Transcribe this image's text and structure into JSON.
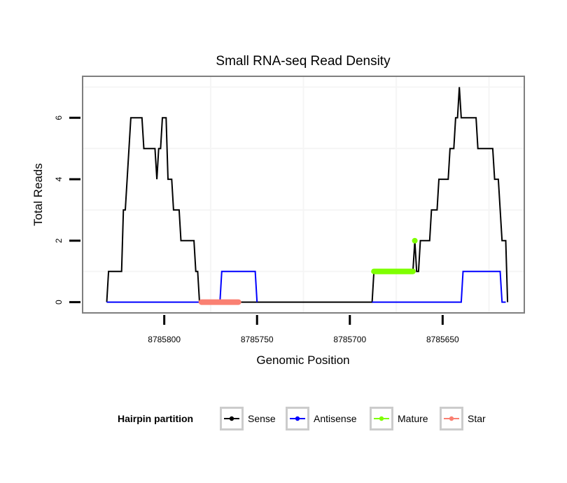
{
  "chart_data": {
    "type": "line",
    "title": "Small RNA-seq Read Density",
    "xlabel": "Genomic Position",
    "ylabel": "Total Reads",
    "x_reversed": true,
    "xlim": [
      8785844,
      8785606
    ],
    "ylim": [
      -0.35,
      7.35
    ],
    "x_ticks": [
      8785800,
      8785750,
      8785700,
      8785650
    ],
    "x_tick_labels": [
      "8785800",
      "8785750",
      "8785700",
      "8785650"
    ],
    "y_ticks": [
      0,
      2,
      4,
      6
    ],
    "y_tick_labels": [
      "0",
      "2",
      "4",
      "6"
    ],
    "x_minor_grid": [
      8785775,
      8785725,
      8785675,
      8785625
    ],
    "y_minor_grid": [
      1,
      3,
      5,
      7
    ],
    "grid": true,
    "legend": {
      "title": "Hairpin partition",
      "placement": "bottom",
      "entries": [
        "Sense",
        "Antisense",
        "Mature",
        "Star"
      ]
    },
    "series": [
      {
        "name": "Sense",
        "color": "#000000",
        "points": [
          [
            8785831,
            0
          ],
          [
            8785830,
            1
          ],
          [
            8785823,
            1
          ],
          [
            8785822,
            3
          ],
          [
            8785821,
            3
          ],
          [
            8785818,
            6
          ],
          [
            8785812,
            6
          ],
          [
            8785811,
            5
          ],
          [
            8785805,
            5
          ],
          [
            8785804,
            4
          ],
          [
            8785803,
            5
          ],
          [
            8785802,
            5
          ],
          [
            8785801,
            6
          ],
          [
            8785799,
            6
          ],
          [
            8785798,
            4
          ],
          [
            8785796,
            4
          ],
          [
            8785795,
            3
          ],
          [
            8785792,
            3
          ],
          [
            8785791,
            2
          ],
          [
            8785784,
            2
          ],
          [
            8785783,
            1
          ],
          [
            8785782,
            1
          ],
          [
            8785781,
            0
          ],
          [
            8785688,
            0
          ],
          [
            8785687,
            1
          ],
          [
            8785666,
            1
          ],
          [
            8785665,
            2
          ],
          [
            8785664,
            1
          ],
          [
            8785663,
            1
          ],
          [
            8785662,
            2
          ],
          [
            8785657,
            2
          ],
          [
            8785656,
            3
          ],
          [
            8785653,
            3
          ],
          [
            8785652,
            4
          ],
          [
            8785647,
            4
          ],
          [
            8785646,
            5
          ],
          [
            8785644,
            5
          ],
          [
            8785643,
            6
          ],
          [
            8785642,
            6
          ],
          [
            8785641,
            7
          ],
          [
            8785640,
            6
          ],
          [
            8785632,
            6
          ],
          [
            8785631,
            5
          ],
          [
            8785623,
            5
          ],
          [
            8785622,
            4
          ],
          [
            8785620,
            4
          ],
          [
            8785618,
            2
          ],
          [
            8785616,
            2
          ],
          [
            8785615,
            0
          ]
        ]
      },
      {
        "name": "Antisense",
        "color": "#0000ff",
        "points": [
          [
            8785831,
            0
          ],
          [
            8785781,
            0
          ]
        ],
        "segments": [
          [
            [
              8785831,
              0
            ],
            [
              8785781,
              0
            ]
          ],
          [
            [
              8785770,
              0
            ],
            [
              8785769,
              1
            ],
            [
              8785751,
              1
            ],
            [
              8785750,
              0
            ]
          ],
          [
            [
              8785688,
              0
            ],
            [
              8785640,
              0
            ],
            [
              8785639,
              1
            ],
            [
              8785619,
              1
            ],
            [
              8785618,
              0
            ],
            [
              8785616,
              0
            ]
          ]
        ]
      },
      {
        "name": "Mature",
        "color": "#7fff00",
        "segments": [
          [
            [
              8785687,
              1
            ],
            [
              8785666,
              1
            ]
          ]
        ],
        "points": [
          [
            8785665,
            2
          ]
        ]
      },
      {
        "name": "Star",
        "color": "#fa8072",
        "segments": [
          [
            [
              8785780,
              0
            ],
            [
              8785760,
              0
            ]
          ]
        ]
      }
    ]
  }
}
